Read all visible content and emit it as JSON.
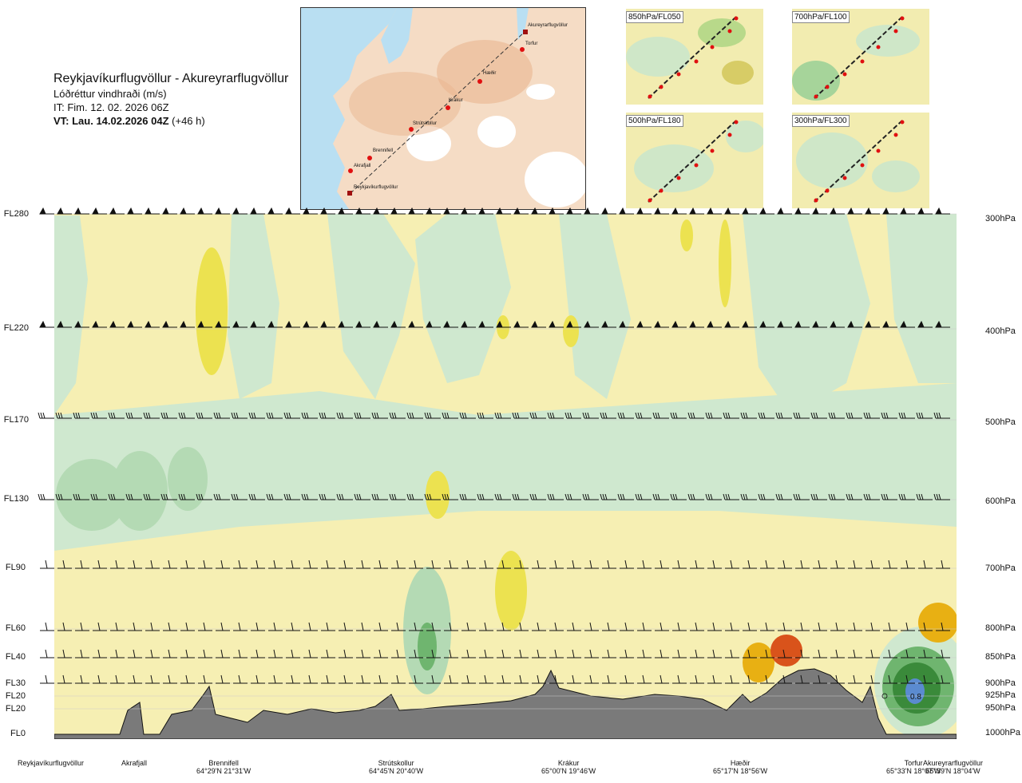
{
  "header": {
    "title": "Reykjavíkurflugvöllur - Akureyrarflugvöllur",
    "subtitle": "Lóðréttur vindhraði (m/s)",
    "issue_time": "IT: Fim. 12. 02. 2026 06Z",
    "valid_time_bold": "VT: Lau. 14.02.2026 04Z",
    "valid_time_offset": "(+46 h)"
  },
  "route_map": {
    "waypoints": [
      "Akureyrarflugvöllur",
      "Torfur",
      "Hæðir",
      "Krákur",
      "Strútskollur",
      "Brennifell",
      "Akrafjall",
      "Reykjavíkurflugvöllur"
    ]
  },
  "mini_maps": [
    {
      "label": "850hPa/FL050"
    },
    {
      "label": "700hPa/FL100"
    },
    {
      "label": "500hPa/FL180"
    },
    {
      "label": "300hPa/FL300"
    }
  ],
  "chart_data": {
    "type": "heatmap",
    "title": "Lóðréttur vindhraði (m/s)",
    "left_axis": [
      "FL280",
      "FL220",
      "FL170",
      "FL130",
      "FL90",
      "FL60",
      "FL40",
      "FL30",
      "FL20",
      "FL20",
      "FL0"
    ],
    "right_axis": [
      "300hPa",
      "400hPa",
      "500hPa",
      "600hPa",
      "700hPa",
      "800hPa",
      "850hPa",
      "900hPa",
      "925hPa",
      "950hPa",
      "1000hPa"
    ],
    "bottom_axis": [
      {
        "name": "Reykjavíkurflugvöllur",
        "coord": ""
      },
      {
        "name": "Akrafjall",
        "coord": ""
      },
      {
        "name": "Brennifell",
        "coord": "64°29'N 21°31'W"
      },
      {
        "name": "Strútskollur",
        "coord": "64°45'N 20°40'W"
      },
      {
        "name": "Krákur",
        "coord": "65°00'N 19°46'W"
      },
      {
        "name": "Hæðir",
        "coord": "65°17'N 18°56'W"
      },
      {
        "name": "Torfur",
        "coord": "65°33'N 18°07'W"
      },
      {
        "name": "Akureyrarflugvöllur",
        "coord": "65°39'N 18°04'W"
      }
    ],
    "annotations": [
      "0.8"
    ],
    "colors": {
      "strong_down": "#4a8f4a",
      "down": "#9fce9f",
      "weak_down": "#cfe9cf",
      "neutral": "#ffffff",
      "weak_up": "#f7f0b4",
      "up": "#ebe14a",
      "strong_up": "#e8b013",
      "peak_up": "#d9531b",
      "max_down": "#5b8bd0",
      "terrain": "#7a7a7a"
    }
  }
}
